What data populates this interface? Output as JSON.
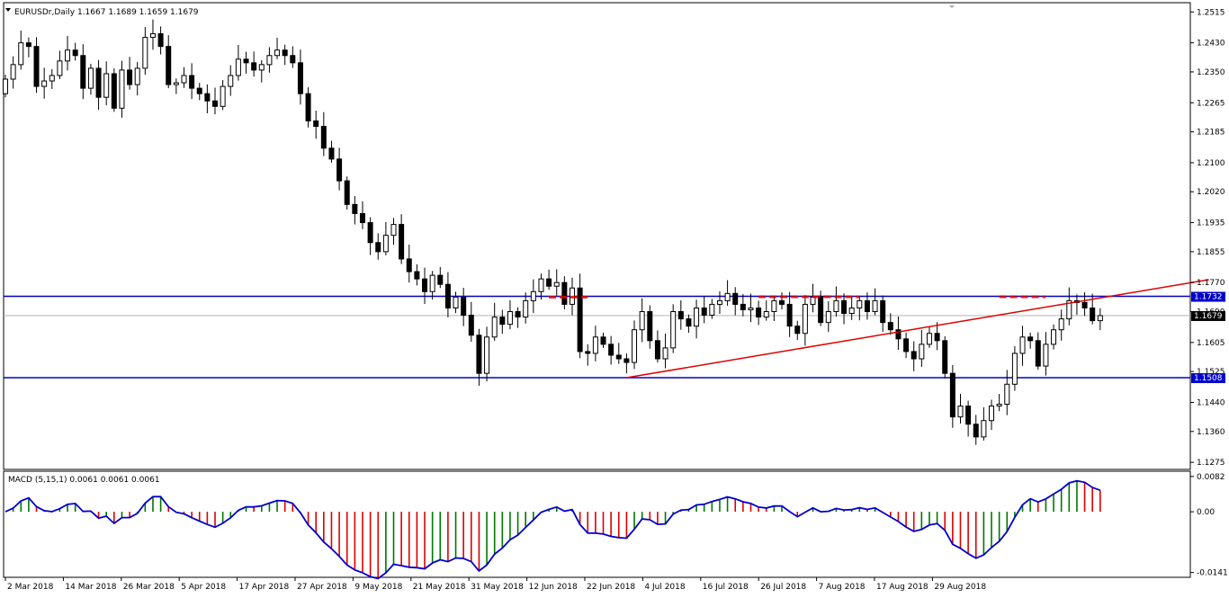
{
  "chart_data": {
    "type": "candlestick",
    "symbol_header": "EURUSDr,Daily",
    "header_ohlc": "1.1667 1.1689 1.1659 1.1679",
    "price_axis": {
      "ylim": [
        1.1258,
        1.2538
      ],
      "ticks": [
        "1.2515",
        "1.2430",
        "1.2350",
        "1.2265",
        "1.2185",
        "1.2100",
        "1.2020",
        "1.1935",
        "1.1855",
        "1.1770",
        "1.1690",
        "1.1605",
        "1.1525",
        "1.1440",
        "1.1360",
        "1.1275"
      ]
    },
    "date_axis": {
      "labels": [
        "2 Mar 2018",
        "14 Mar 2018",
        "26 Mar 2018",
        "5 Apr 2018",
        "17 Apr 2018",
        "27 Apr 2018",
        "9 May 2018",
        "21 May 2018",
        "31 May 2018",
        "12 Jun 2018",
        "22 Jun 2018",
        "4 Jul 2018",
        "16 Jul 2018",
        "26 Jul 2018",
        "7 Aug 2018",
        "17 Aug 2018",
        "29 Aug 2018"
      ]
    },
    "horizontal_lines": [
      {
        "price": 1.1732,
        "label": "1.1732",
        "color": "#0000cc"
      },
      {
        "price": 1.1508,
        "label": "1.1508",
        "color": "#0000cc"
      }
    ],
    "current_price": {
      "price": 1.1679,
      "label": "1.1679"
    },
    "trendline": {
      "from_bar": 80,
      "from_price": 1.1508,
      "to_bar": 155,
      "to_price": 1.1778,
      "color": "#e00000"
    },
    "resistance_marks": [
      {
        "from_bar": 70,
        "to_bar": 75,
        "price": 1.173
      },
      {
        "from_bar": 97,
        "to_bar": 104,
        "price": 1.1731
      },
      {
        "from_bar": 104,
        "to_bar": 110,
        "price": 1.1731
      },
      {
        "from_bar": 128,
        "to_bar": 134,
        "price": 1.1731
      }
    ],
    "macd": {
      "label": "MACD (5,15,1) 0.0061 0.0061 0.0061",
      "ylim": [
        -0.0148,
        0.009
      ],
      "ticks": [
        "0.0082",
        "0.00",
        "-0.0141"
      ],
      "colors": {
        "up": "#007700",
        "down": "#dd0000",
        "signal": "#0000cc"
      }
    },
    "closes": [
      1.233,
      1.237,
      1.243,
      1.242,
      1.231,
      1.2325,
      1.234,
      1.238,
      1.241,
      1.2395,
      1.2305,
      1.236,
      1.228,
      1.2345,
      1.225,
      1.2355,
      1.2315,
      1.236,
      1.2445,
      1.2455,
      1.242,
      1.2315,
      1.232,
      1.234,
      1.2305,
      1.229,
      1.227,
      1.2255,
      1.231,
      1.234,
      1.2385,
      1.2375,
      1.2355,
      1.237,
      1.2395,
      1.241,
      1.2395,
      1.2375,
      1.229,
      1.2215,
      1.22,
      1.214,
      1.211,
      1.205,
      1.1985,
      1.196,
      1.1935,
      1.188,
      1.1855,
      1.19,
      1.193,
      1.1835,
      1.18,
      1.178,
      1.1745,
      1.179,
      1.1765,
      1.17,
      1.173,
      1.168,
      1.1625,
      1.152,
      1.162,
      1.1675,
      1.1655,
      1.169,
      1.1675,
      1.172,
      1.1745,
      1.178,
      1.176,
      1.177,
      1.171,
      1.1755,
      1.158,
      1.1575,
      1.162,
      1.16,
      1.157,
      1.156,
      1.155,
      1.164,
      1.169,
      1.161,
      1.156,
      1.159,
      1.169,
      1.167,
      1.165,
      1.17,
      1.168,
      1.171,
      1.172,
      1.174,
      1.171,
      1.1695,
      1.17,
      1.1675,
      1.169,
      1.172,
      1.171,
      1.165,
      1.163,
      1.171,
      1.173,
      1.166,
      1.169,
      1.172,
      1.1685,
      1.17,
      1.172,
      1.169,
      1.172,
      1.166,
      1.164,
      1.1615,
      1.158,
      1.156,
      1.16,
      1.163,
      1.161,
      1.152,
      1.14,
      1.143,
      1.138,
      1.1345,
      1.139,
      1.143,
      1.1435,
      1.149,
      1.1575,
      1.162,
      1.161,
      1.154,
      1.16,
      1.164,
      1.167,
      1.172,
      1.1715,
      1.17,
      1.1665,
      1.1679
    ]
  }
}
